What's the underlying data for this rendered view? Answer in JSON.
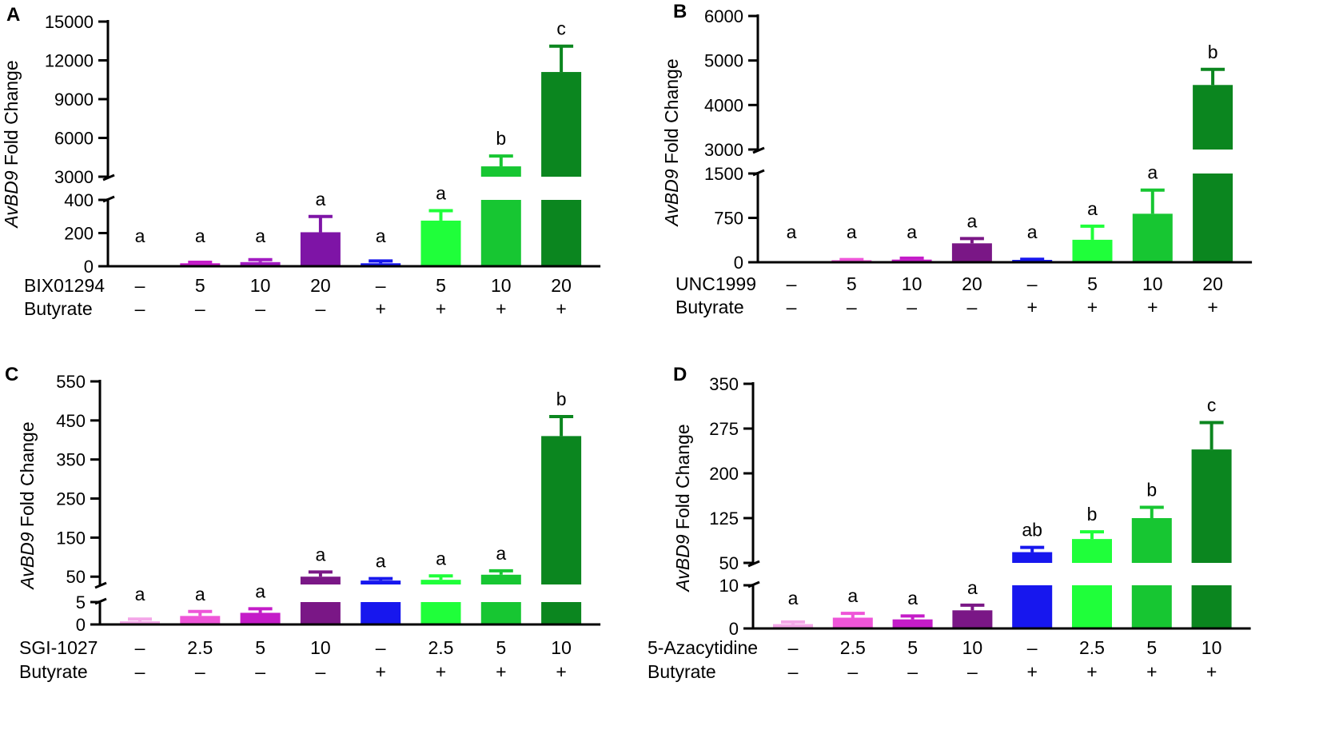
{
  "figure": {
    "colors": {
      "light_pink": "#f4a6e8",
      "pink": "#ee55d8",
      "magenta": "#c41cc8",
      "purple_a": "#7e14a6",
      "purple": "#7a1786",
      "blue": "#1717ee",
      "bright_green": "#1fff3a",
      "mid_green": "#17c632",
      "dark_green": "#0b861f",
      "axis": "#000000"
    },
    "break_mark": "//"
  },
  "chart_data": [
    {
      "panel": "A",
      "type": "bar",
      "ylabel_italic": "AvBD9",
      "ylabel_rest": " Fold Change",
      "lower_axis": {
        "min": 0,
        "max": 400,
        "ticks": [
          0,
          200,
          400
        ]
      },
      "upper_axis": {
        "min": 3000,
        "max": 15000,
        "ticks": [
          3000,
          6000,
          9000,
          12000,
          15000
        ]
      },
      "series": [
        {
          "name": "AvBD9 fold change",
          "values": [
            1,
            18,
            25,
            205,
            18,
            275,
            3800,
            11100
          ],
          "errors": [
            0,
            6,
            15,
            95,
            14,
            60,
            800,
            2000
          ],
          "letters": [
            "a",
            "a",
            "a",
            "a",
            "a",
            "a",
            "b",
            "c"
          ],
          "colors": [
            "#f4a6e8",
            "#c41cc8",
            "#a21bc2",
            "#7e14a6",
            "#1717ee",
            "#1fff3a",
            "#17c632",
            "#0b861f"
          ]
        }
      ],
      "row1_label": "BIX01294",
      "row1": [
        "–",
        "5",
        "10",
        "20",
        "–",
        "5",
        "10",
        "20"
      ],
      "row2_label": "Butyrate",
      "row2": [
        "–",
        "–",
        "–",
        "–",
        "+",
        "+",
        "+",
        "+"
      ]
    },
    {
      "panel": "B",
      "type": "bar",
      "ylabel_italic": "AvBD9",
      "ylabel_rest": " Fold Change",
      "lower_axis": {
        "min": 0,
        "max": 1500,
        "ticks": [
          0,
          750,
          1500
        ]
      },
      "upper_axis": {
        "min": 3000,
        "max": 6000,
        "ticks": [
          3000,
          4000,
          5000,
          6000
        ]
      },
      "series": [
        {
          "name": "AvBD9 fold change",
          "values": [
            1,
            35,
            45,
            320,
            40,
            380,
            820,
            4450
          ],
          "errors": [
            0,
            10,
            25,
            80,
            10,
            230,
            400,
            350
          ],
          "letters": [
            "a",
            "a",
            "a",
            "a",
            "a",
            "a",
            "a",
            "b"
          ],
          "colors": [
            "#f4a6e8",
            "#ee55d8",
            "#c41cc8",
            "#7a1786",
            "#1717ee",
            "#1fff3a",
            "#17c632",
            "#0b861f"
          ]
        }
      ],
      "row1_label": "UNC1999",
      "row1": [
        "–",
        "5",
        "10",
        "20",
        "–",
        "5",
        "10",
        "20"
      ],
      "row2_label": "Butyrate",
      "row2": [
        "–",
        "–",
        "–",
        "–",
        "+",
        "+",
        "+",
        "+"
      ]
    },
    {
      "panel": "C",
      "type": "bar",
      "ylabel_italic": "AvBD9",
      "ylabel_rest": " Fold Change",
      "lower_axis": {
        "min": 0,
        "max": 5,
        "ticks": [
          0,
          5
        ]
      },
      "upper_axis": {
        "min": 30,
        "max": 550,
        "ticks": [
          50,
          150,
          250,
          350,
          450,
          550
        ]
      },
      "series": [
        {
          "name": "AvBD9 fold change",
          "values": [
            0.7,
            1.9,
            2.6,
            50,
            40,
            42,
            55,
            410
          ],
          "errors": [
            0.5,
            1.0,
            0.9,
            12,
            5,
            10,
            10,
            50
          ],
          "letters": [
            "a",
            "a",
            "a",
            "a",
            "a",
            "a",
            "a",
            "b"
          ],
          "colors": [
            "#f4a6e8",
            "#ee55d8",
            "#c41cc8",
            "#7a1786",
            "#1717ee",
            "#1fff3a",
            "#17c632",
            "#0b861f"
          ]
        }
      ],
      "row1_label": "SGI-1027",
      "row1": [
        "–",
        "2.5",
        "5",
        "10",
        "–",
        "2.5",
        "5",
        "10"
      ],
      "row2_label": "Butyrate",
      "row2": [
        "–",
        "–",
        "–",
        "–",
        "+",
        "+",
        "+",
        "+"
      ]
    },
    {
      "panel": "D",
      "type": "bar",
      "ylabel_italic": "AvBD9",
      "ylabel_rest": " Fold Change",
      "lower_axis": {
        "min": 0,
        "max": 10,
        "ticks": [
          0,
          10
        ]
      },
      "upper_axis": {
        "min": 50,
        "max": 350,
        "ticks": [
          50,
          125,
          200,
          275,
          350
        ]
      },
      "series": [
        {
          "name": "AvBD9 fold change",
          "values": [
            1,
            2.5,
            2.1,
            4.2,
            68,
            90,
            125,
            240
          ],
          "errors": [
            0.5,
            1.0,
            0.8,
            1.2,
            8,
            12,
            18,
            45
          ],
          "letters": [
            "a",
            "a",
            "a",
            "a",
            "ab",
            "b",
            "b",
            "c"
          ],
          "colors": [
            "#f4a6e8",
            "#ee55d8",
            "#c41cc8",
            "#7a1786",
            "#1717ee",
            "#1fff3a",
            "#17c632",
            "#0b861f"
          ]
        }
      ],
      "row1_label": "5-Azacytidine",
      "row1": [
        "–",
        "2.5",
        "5",
        "10",
        "–",
        "2.5",
        "5",
        "10"
      ],
      "row2_label": "Butyrate",
      "row2": [
        "–",
        "–",
        "–",
        "–",
        "+",
        "+",
        "+",
        "+"
      ]
    }
  ]
}
